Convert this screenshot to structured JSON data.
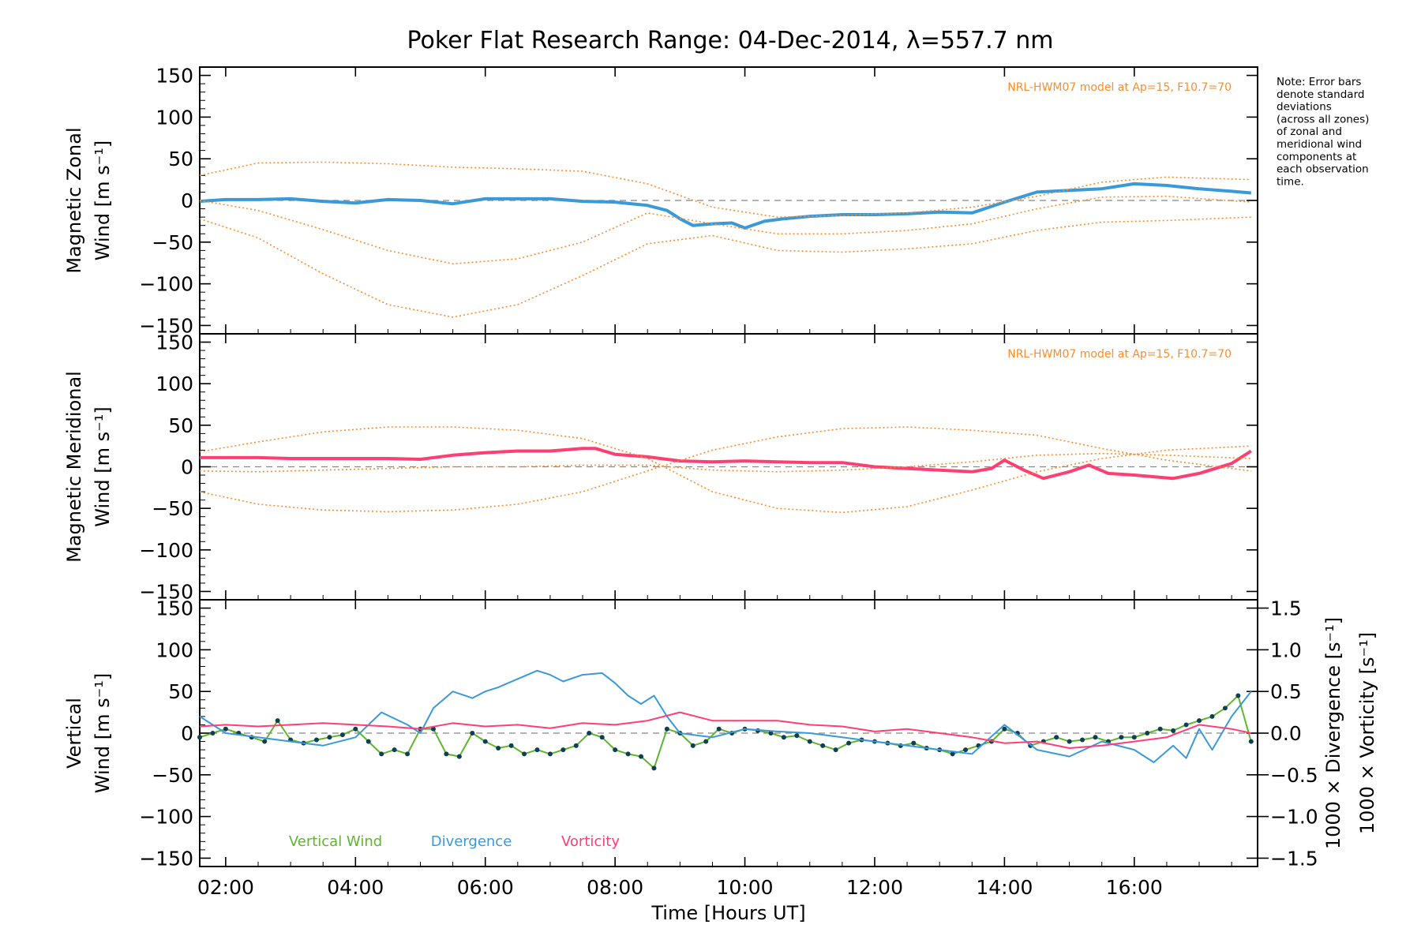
{
  "chart_data": [
    {
      "panel": "zonal",
      "type": "line",
      "title": "Poker Flat Research Range: 04-Dec-2014, λ=557.7 nm",
      "ylabel_line1": "Magnetic Zonal",
      "ylabel_line2": "Wind [m s⁻¹]",
      "ylim": [
        -160,
        160
      ],
      "yticks": [
        150,
        100,
        50,
        0,
        -50,
        -100,
        -150
      ],
      "model_label": "NRL-HWM07 model at Ap=15, F10.7=70",
      "note": [
        "Note: Error bars",
        "denote standard",
        "deviations",
        "(across all zones)",
        "of zonal and",
        "meridional wind",
        "components at",
        "each observation",
        "time."
      ],
      "series": [
        {
          "color": "#3a9ad9",
          "x": [
            1.6,
            2.0,
            2.5,
            3.0,
            3.5,
            4.0,
            4.5,
            5.0,
            5.5,
            6.0,
            6.5,
            7.0,
            7.5,
            8.0,
            8.5,
            8.8,
            9.0,
            9.2,
            9.5,
            9.8,
            10.0,
            10.3,
            10.6,
            11.0,
            11.5,
            12.0,
            12.5,
            13.0,
            13.5,
            14.0,
            14.5,
            15.0,
            15.5,
            16.0,
            16.5,
            17.0,
            17.5,
            17.8
          ],
          "y": [
            -1,
            1,
            1,
            2,
            -1,
            -3,
            1,
            0,
            -4,
            2,
            2,
            2,
            -1,
            -2,
            -6,
            -12,
            -22,
            -30,
            -28,
            -27,
            -33,
            -25,
            -22,
            -19,
            -17,
            -17,
            -16,
            -14,
            -15,
            -2,
            10,
            12,
            14,
            20,
            18,
            14,
            11,
            9
          ]
        },
        {
          "color": "#ff8c2a",
          "style": "dotted",
          "x": [
            1.6,
            2.5,
            3.5,
            4.5,
            5.5,
            6.5,
            7.5,
            8.5,
            9.5,
            10.5,
            11.5,
            12.5,
            13.5,
            14.5,
            15.5,
            16.5,
            17.8
          ],
          "y": [
            -22,
            -45,
            -88,
            -125,
            -140,
            -125,
            -90,
            -52,
            -42,
            -60,
            -62,
            -58,
            -52,
            -36,
            -26,
            -24,
            -20
          ]
        },
        {
          "color": "#ff8c2a",
          "style": "dotted",
          "x": [
            1.6,
            2.5,
            3.5,
            4.5,
            5.5,
            6.5,
            7.5,
            8.5,
            9.5,
            10.5,
            11.5,
            12.5,
            13.5,
            14.5,
            15.5,
            16.5,
            17.8
          ],
          "y": [
            30,
            45,
            46,
            44,
            40,
            38,
            35,
            20,
            -8,
            -20,
            -18,
            -15,
            -8,
            5,
            22,
            28,
            25
          ]
        },
        {
          "color": "#ff8c2a",
          "style": "dotted",
          "x": [
            1.6,
            2.5,
            3.5,
            4.5,
            5.5,
            6.5,
            7.5,
            8.5,
            9.5,
            10.5,
            11.5,
            12.5,
            13.5,
            14.5,
            15.5,
            16.5,
            17.8
          ],
          "y": [
            0,
            -12,
            -35,
            -60,
            -76,
            -70,
            -50,
            -15,
            -28,
            -40,
            -40,
            -36,
            -28,
            -10,
            4,
            5,
            -2
          ]
        }
      ]
    },
    {
      "panel": "meridional",
      "type": "line",
      "ylabel_line1": "Magnetic Meridional",
      "ylabel_line2": "Wind [m s⁻¹]",
      "ylim": [
        -160,
        160
      ],
      "yticks": [
        150,
        100,
        50,
        0,
        -50,
        -100,
        -150
      ],
      "model_label": "NRL-HWM07 model at Ap=15, F10.7=70",
      "series": [
        {
          "color": "#ff3f72",
          "x": [
            1.6,
            2.0,
            2.5,
            3.0,
            3.5,
            4.0,
            4.5,
            5.0,
            5.5,
            6.0,
            6.5,
            7.0,
            7.5,
            7.7,
            8.0,
            8.5,
            9.0,
            9.5,
            10.0,
            10.5,
            11.0,
            11.5,
            12.0,
            12.5,
            13.0,
            13.5,
            13.8,
            14.0,
            14.3,
            14.6,
            15.0,
            15.3,
            15.6,
            16.0,
            16.3,
            16.6,
            17.0,
            17.5,
            17.8
          ],
          "y": [
            11,
            11,
            11,
            10,
            10,
            10,
            10,
            9,
            14,
            17,
            19,
            19,
            22,
            22,
            15,
            12,
            7,
            6,
            7,
            6,
            5,
            5,
            0,
            -2,
            -4,
            -6,
            -2,
            8,
            -4,
            -14,
            -6,
            2,
            -8,
            -10,
            -12,
            -14,
            -8,
            4,
            19
          ]
        },
        {
          "color": "#ff8c2a",
          "style": "dotted",
          "x": [
            1.6,
            2.5,
            3.5,
            4.5,
            5.5,
            6.5,
            7.5,
            8.5,
            9.5,
            10.5,
            11.5,
            12.5,
            13.5,
            14.5,
            15.5,
            16.5,
            17.8
          ],
          "y": [
            18,
            30,
            42,
            48,
            48,
            44,
            34,
            10,
            -30,
            -50,
            -55,
            -48,
            -28,
            -6,
            10,
            20,
            25
          ]
        },
        {
          "color": "#ff8c2a",
          "style": "dotted",
          "x": [
            1.6,
            2.5,
            3.5,
            4.5,
            5.5,
            6.5,
            7.5,
            8.5,
            9.5,
            10.5,
            11.5,
            12.5,
            13.5,
            14.5,
            15.5,
            16.5,
            17.8
          ],
          "y": [
            -30,
            -45,
            -52,
            -54,
            -52,
            -45,
            -30,
            -5,
            20,
            36,
            46,
            48,
            44,
            38,
            22,
            8,
            -5
          ]
        },
        {
          "color": "#ff8c2a",
          "style": "dotted",
          "x": [
            1.6,
            2.5,
            3.5,
            4.5,
            5.5,
            6.5,
            7.5,
            8.5,
            9.5,
            10.5,
            11.5,
            12.5,
            13.5,
            14.5,
            15.5,
            16.5,
            17.8
          ],
          "y": [
            -5,
            -6,
            -4,
            -2,
            0,
            0,
            2,
            2,
            -4,
            -6,
            -4,
            0,
            6,
            14,
            16,
            14,
            10
          ]
        }
      ]
    },
    {
      "panel": "vertical",
      "type": "line",
      "ylabel_line1": "Vertical",
      "ylabel_line2": "Wind [m s⁻¹]",
      "ylim": [
        -160,
        160
      ],
      "yticks": [
        150,
        100,
        50,
        0,
        -50,
        -100,
        -150
      ],
      "y2_label": "1000 × Divergence [s⁻¹]",
      "y3_label": "1000 × Vorticity [s⁻¹]",
      "y2lim": [
        -1.6,
        1.6
      ],
      "y2ticks": [
        "1.5",
        "1.0",
        "0.5",
        "0.0",
        "−0.5",
        "−1.0",
        "−1.5"
      ],
      "y2tick_values": [
        1.5,
        1.0,
        0.5,
        0.0,
        -0.5,
        -1.0,
        -1.5
      ],
      "xlabel": "Time [Hours UT]",
      "xlim": [
        1.6,
        17.9
      ],
      "xticks": [
        "02:00",
        "04:00",
        "06:00",
        "08:00",
        "10:00",
        "12:00",
        "14:00",
        "16:00"
      ],
      "xtick_values": [
        2,
        4,
        6,
        8,
        10,
        12,
        14,
        16
      ],
      "legend": [
        {
          "label": "Vertical Wind",
          "color": "#5fb52d"
        },
        {
          "label": "Divergence",
          "color": "#3a9ad9"
        },
        {
          "label": "Vorticity",
          "color": "#ff3f72"
        }
      ],
      "series": [
        {
          "name": "Vertical Wind",
          "color": "#5fb52d",
          "x": [
            1.6,
            1.8,
            2.0,
            2.2,
            2.4,
            2.6,
            2.8,
            3.0,
            3.2,
            3.4,
            3.6,
            3.8,
            4.0,
            4.2,
            4.4,
            4.6,
            4.8,
            5.0,
            5.2,
            5.4,
            5.6,
            5.8,
            6.0,
            6.2,
            6.4,
            6.6,
            6.8,
            7.0,
            7.2,
            7.4,
            7.6,
            7.8,
            8.0,
            8.2,
            8.4,
            8.6,
            8.8,
            9.0,
            9.2,
            9.4,
            9.6,
            9.8,
            10.0,
            10.2,
            10.4,
            10.6,
            10.8,
            11.0,
            11.2,
            11.4,
            11.6,
            11.8,
            12.0,
            12.2,
            12.4,
            12.6,
            12.8,
            13.0,
            13.2,
            13.4,
            13.6,
            13.8,
            14.0,
            14.2,
            14.4,
            14.6,
            14.8,
            15.0,
            15.2,
            15.4,
            15.6,
            15.8,
            16.0,
            16.2,
            16.4,
            16.6,
            16.8,
            17.0,
            17.2,
            17.4,
            17.6,
            17.8
          ],
          "y": [
            -5,
            0,
            5,
            0,
            -5,
            -10,
            15,
            -8,
            -12,
            -8,
            -5,
            -2,
            5,
            -10,
            -25,
            -20,
            -25,
            5,
            5,
            -25,
            -28,
            0,
            -10,
            -18,
            -15,
            -25,
            -20,
            -25,
            -20,
            -15,
            0,
            -5,
            -20,
            -25,
            -28,
            -42,
            5,
            0,
            -15,
            -10,
            5,
            0,
            5,
            3,
            0,
            -5,
            -3,
            -10,
            -15,
            -20,
            -12,
            -8,
            -10,
            -12,
            -15,
            -12,
            -18,
            -20,
            -25,
            -20,
            -15,
            -10,
            5,
            0,
            -15,
            -10,
            -5,
            -10,
            -8,
            -5,
            -10,
            -5,
            -5,
            0,
            5,
            3,
            10,
            15,
            20,
            30,
            45,
            -10
          ]
        },
        {
          "name": "Divergence",
          "color": "#3a9ad9",
          "x": [
            1.6,
            1.8,
            2.0,
            2.5,
            3.0,
            3.5,
            4.0,
            4.4,
            4.8,
            5.0,
            5.2,
            5.5,
            5.8,
            6.0,
            6.2,
            6.5,
            6.8,
            7.0,
            7.2,
            7.5,
            7.8,
            8.0,
            8.2,
            8.4,
            8.6,
            8.8,
            9.0,
            9.5,
            10.0,
            10.5,
            11.0,
            11.5,
            12.0,
            12.5,
            13.0,
            13.5,
            14.0,
            14.5,
            15.0,
            15.5,
            16.0,
            16.3,
            16.6,
            16.8,
            17.0,
            17.2,
            17.5,
            17.8
          ],
          "y2": [
            0.2,
            0.1,
            0.0,
            -0.05,
            -0.1,
            -0.15,
            -0.05,
            0.25,
            0.1,
            0.0,
            0.3,
            0.5,
            0.42,
            0.5,
            0.55,
            0.65,
            0.75,
            0.7,
            0.62,
            0.7,
            0.72,
            0.6,
            0.45,
            0.35,
            0.45,
            0.2,
            0.0,
            -0.05,
            0.05,
            0.02,
            0.0,
            -0.05,
            -0.1,
            -0.15,
            -0.2,
            -0.25,
            0.1,
            -0.2,
            -0.28,
            -0.1,
            -0.2,
            -0.35,
            -0.15,
            -0.3,
            0.05,
            -0.2,
            0.2,
            0.5
          ]
        },
        {
          "name": "Vorticity",
          "color": "#ff3f72",
          "x": [
            1.6,
            2.0,
            2.5,
            3.0,
            3.5,
            4.0,
            4.5,
            5.0,
            5.5,
            6.0,
            6.5,
            7.0,
            7.5,
            8.0,
            8.5,
            9.0,
            9.5,
            10.0,
            10.5,
            11.0,
            11.5,
            12.0,
            12.5,
            13.0,
            13.5,
            14.0,
            14.5,
            15.0,
            15.5,
            16.0,
            16.5,
            17.0,
            17.5,
            17.8
          ],
          "y2": [
            0.08,
            0.1,
            0.08,
            0.1,
            0.12,
            0.1,
            0.08,
            0.05,
            0.12,
            0.08,
            0.1,
            0.06,
            0.12,
            0.1,
            0.15,
            0.25,
            0.15,
            0.15,
            0.15,
            0.1,
            0.08,
            0.02,
            0.05,
            0.0,
            -0.05,
            -0.12,
            -0.1,
            -0.18,
            -0.15,
            -0.1,
            -0.05,
            0.1,
            0.05,
            0.0
          ]
        }
      ]
    }
  ]
}
